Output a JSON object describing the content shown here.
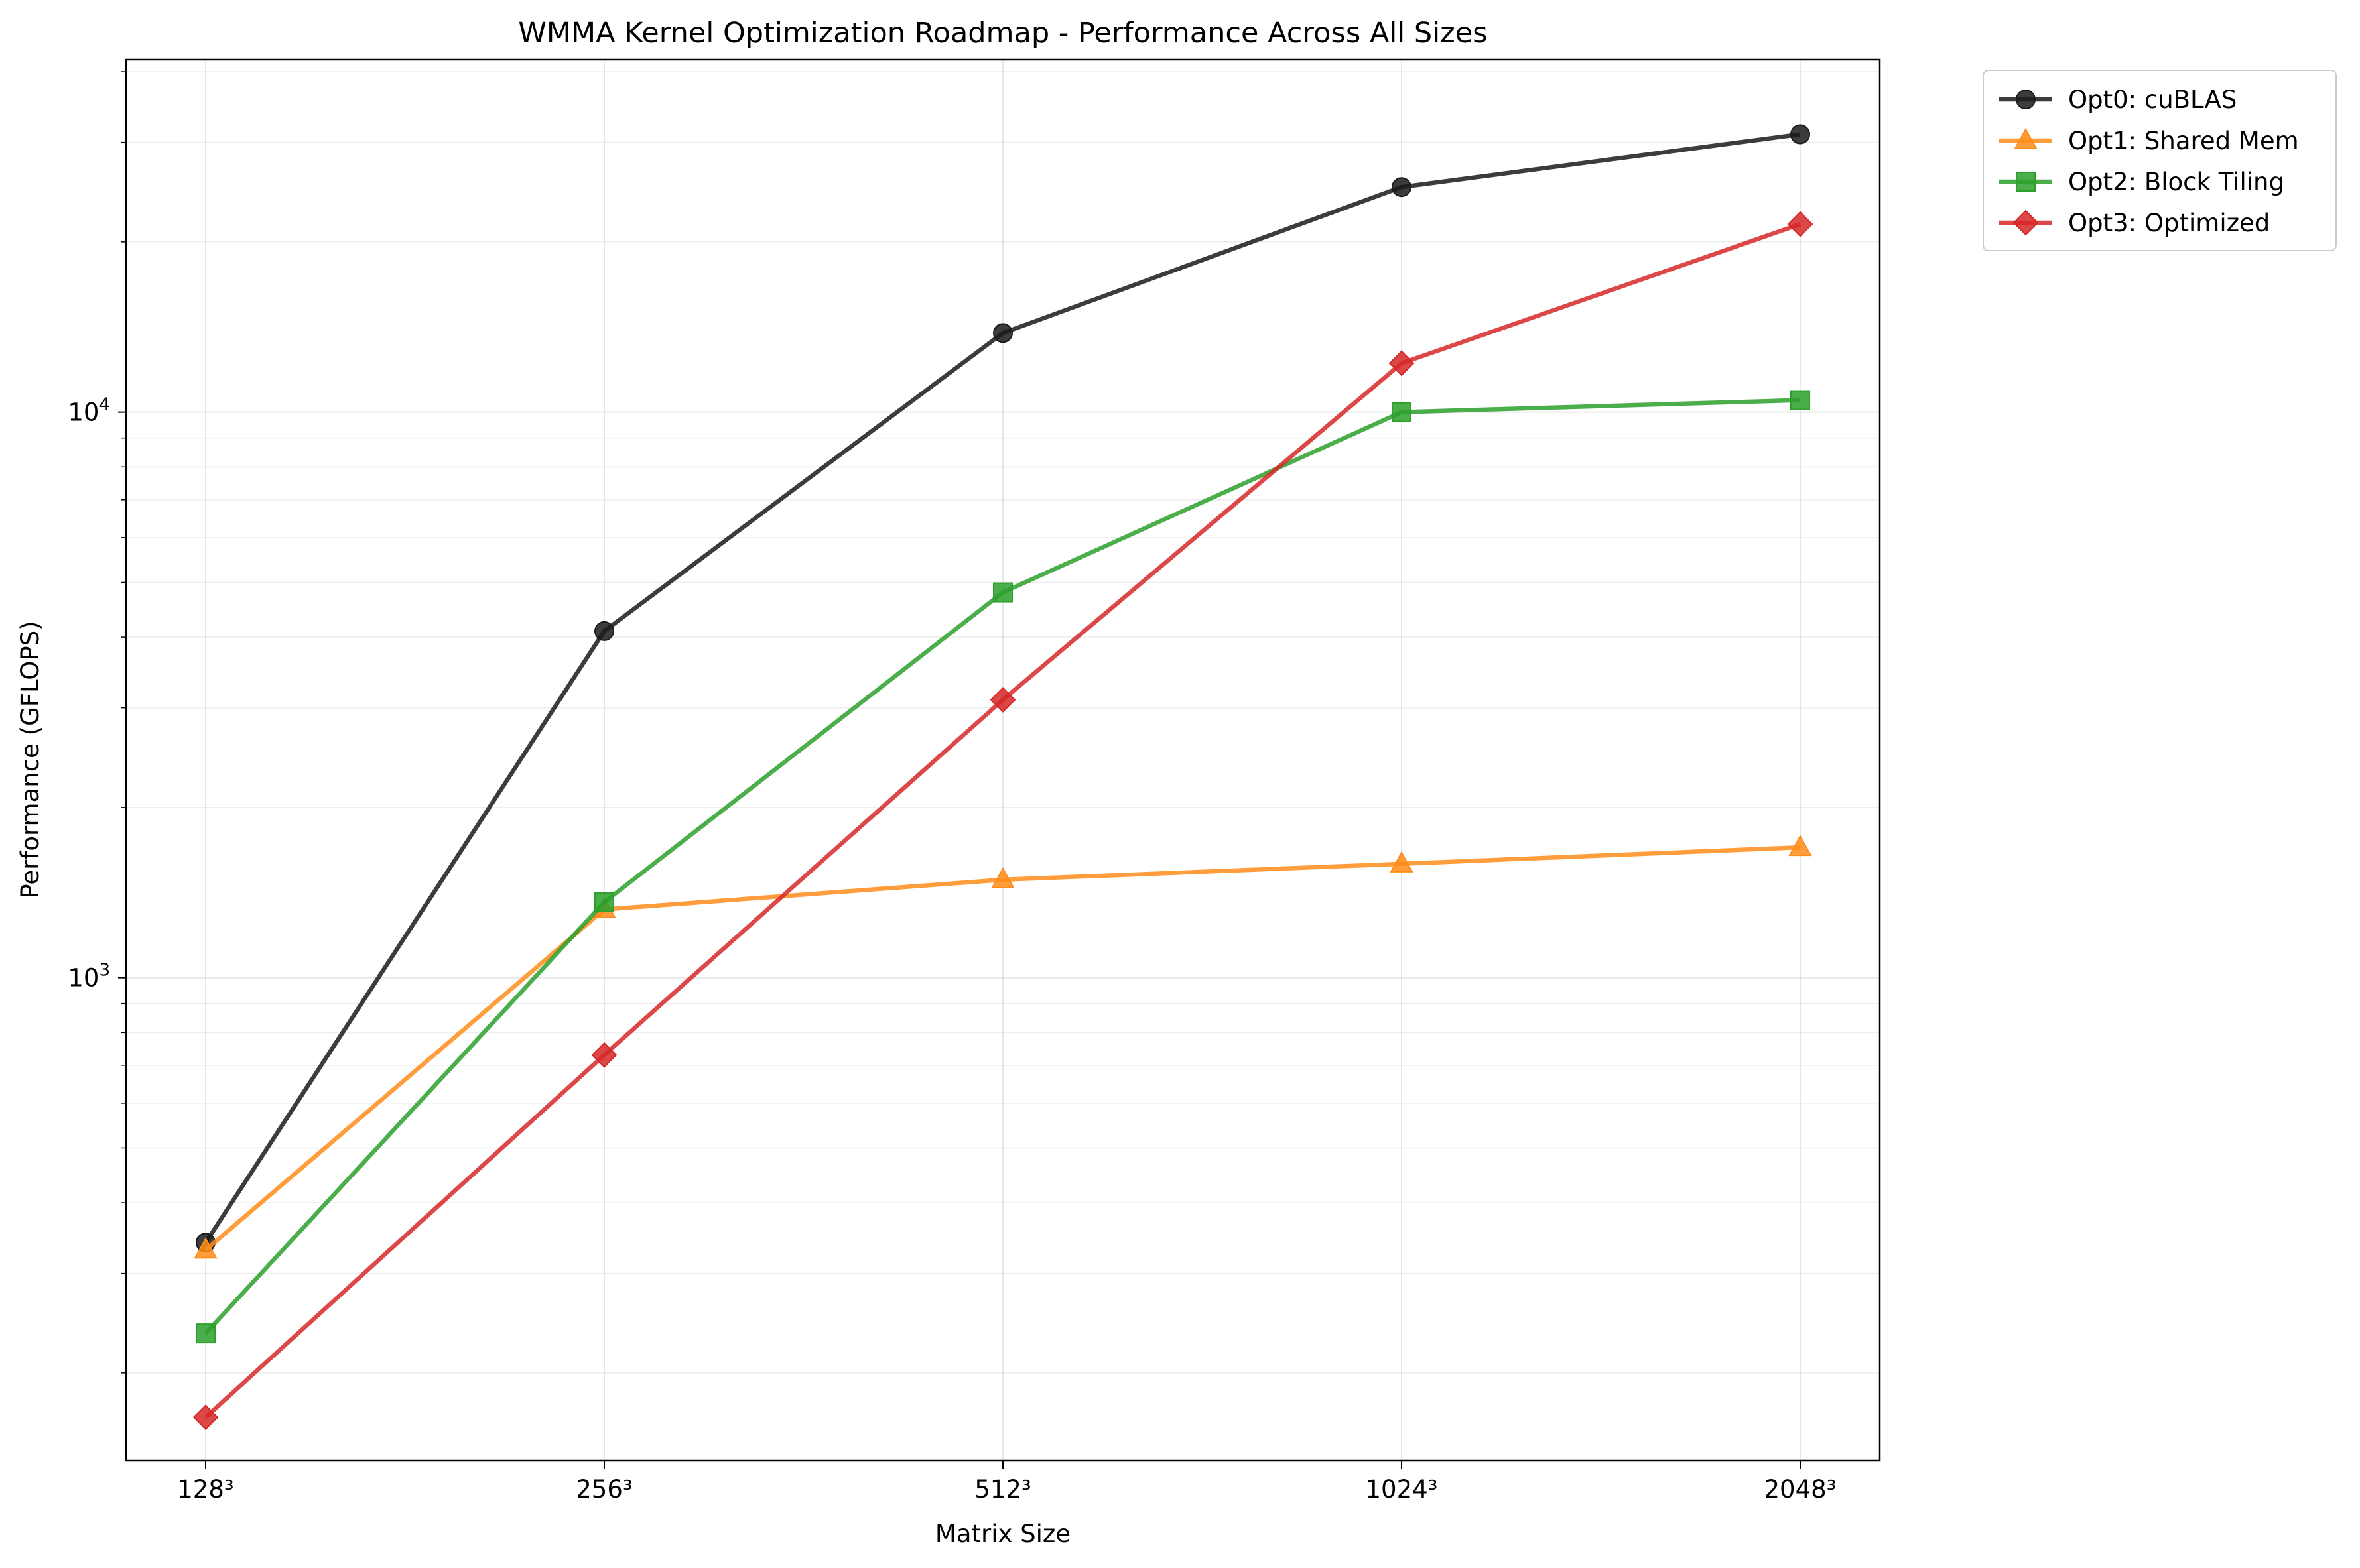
{
  "chart_data": {
    "type": "line",
    "title": "WMMA Kernel Optimization Roadmap - Performance Across All Sizes",
    "xlabel": "Matrix Size",
    "ylabel": "Performance (GFLOPS)",
    "yscale": "log",
    "ylim": [
      140,
      42000
    ],
    "grid": true,
    "legend_position": "outside-top-right",
    "categories": [
      "128³",
      "256³",
      "512³",
      "1024³",
      "2048³"
    ],
    "y_ticks": [
      {
        "base": "10",
        "exp": "3",
        "value": 1000
      },
      {
        "base": "10",
        "exp": "4",
        "value": 10000
      }
    ],
    "series": [
      {
        "name": "Opt0: cuBLAS",
        "color": "#1a1a1a",
        "marker": "circle",
        "values": [
          340,
          4100,
          13800,
          25000,
          31000
        ]
      },
      {
        "name": "Opt1: Shared Mem",
        "color": "#ff8c1a",
        "marker": "triangle",
        "values": [
          330,
          1320,
          1490,
          1590,
          1700
        ]
      },
      {
        "name": "Opt2: Block Tiling",
        "color": "#2ca02c",
        "marker": "square",
        "values": [
          235,
          1360,
          4800,
          10000,
          10500
        ]
      },
      {
        "name": "Opt3: Optimized",
        "color": "#d62728",
        "marker": "diamond",
        "values": [
          167,
          730,
          3100,
          12200,
          21500
        ]
      }
    ]
  }
}
